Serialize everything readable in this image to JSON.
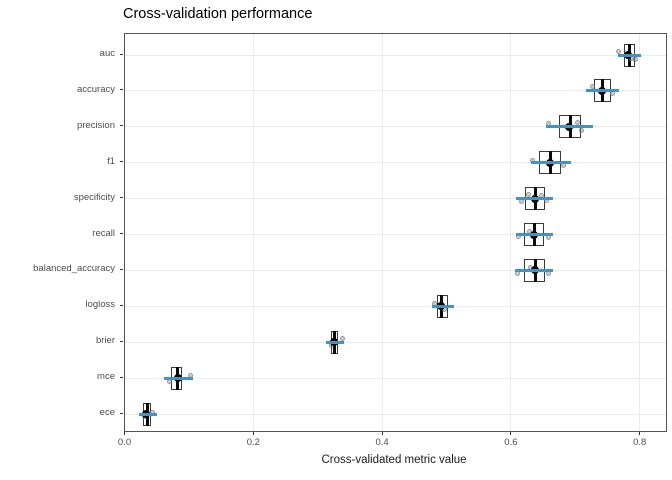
{
  "chart_data": {
    "type": "boxplot",
    "orientation": "horizontal",
    "title": "Cross-validation performance",
    "xlabel": "Cross-validated metric value",
    "x_ticks": [
      "0.0",
      "0.2",
      "0.4",
      "0.6",
      "0.8"
    ],
    "x_tick_values": [
      0,
      0.2,
      0.4,
      0.6,
      0.8
    ],
    "xlim": [
      0,
      0.843
    ],
    "grid": "major-only",
    "legend": "none",
    "colors": {
      "mean_errorbar": "#4292c6",
      "box_border": "#3a3a3a",
      "median": "#0a0a0a",
      "mean_dot": "#000000",
      "jitter_points": "#8c8c8c",
      "gridline": "#ebebeb",
      "panel_border": "#555555",
      "tick_text": "#4d4d4d"
    },
    "metrics": [
      {
        "name": "auc",
        "box": [
          0.776,
          0.792
        ],
        "median": 0.784,
        "mean": 0.782,
        "line": [
          0.766,
          0.802
        ],
        "points": [
          {
            "v": 0.767,
            "dy": -4
          },
          {
            "v": 0.787,
            "dy": 3
          },
          {
            "v": 0.794,
            "dy": 4
          }
        ]
      },
      {
        "name": "accuracy",
        "box": [
          0.729,
          0.755
        ],
        "median": 0.743,
        "mean": 0.741,
        "line": [
          0.717,
          0.768
        ],
        "points": [
          {
            "v": 0.726,
            "dy": -4
          },
          {
            "v": 0.757,
            "dy": 3
          }
        ]
      },
      {
        "name": "precision",
        "box": [
          0.675,
          0.709
        ],
        "median": 0.693,
        "mean": 0.69,
        "line": [
          0.654,
          0.727
        ],
        "points": [
          {
            "v": 0.659,
            "dy": -3
          },
          {
            "v": 0.703,
            "dy": -4
          },
          {
            "v": 0.709,
            "dy": 4
          }
        ]
      },
      {
        "name": "f1",
        "box": [
          0.644,
          0.678
        ],
        "median": 0.662,
        "mean": 0.661,
        "line": [
          0.631,
          0.693
        ],
        "points": [
          {
            "v": 0.634,
            "dy": -2
          },
          {
            "v": 0.681,
            "dy": 3
          }
        ]
      },
      {
        "name": "specificity",
        "box": [
          0.622,
          0.653
        ],
        "median": 0.638,
        "mean": 0.638,
        "line": [
          0.608,
          0.665
        ],
        "points": [
          {
            "v": 0.617,
            "dy": 3
          },
          {
            "v": 0.627,
            "dy": -4
          },
          {
            "v": 0.647,
            "dy": -3
          },
          {
            "v": 0.655,
            "dy": 2
          }
        ]
      },
      {
        "name": "recall",
        "box": [
          0.621,
          0.652
        ],
        "median": 0.636,
        "mean": 0.636,
        "line": [
          0.608,
          0.665
        ],
        "points": [
          {
            "v": 0.612,
            "dy": 2
          },
          {
            "v": 0.629,
            "dy": -3
          },
          {
            "v": 0.659,
            "dy": 3
          }
        ]
      },
      {
        "name": "balanced_accuracy",
        "box": [
          0.621,
          0.653
        ],
        "median": 0.638,
        "mean": 0.637,
        "line": [
          0.606,
          0.666
        ],
        "points": [
          {
            "v": 0.61,
            "dy": 3
          },
          {
            "v": 0.63,
            "dy": -3
          },
          {
            "v": 0.659,
            "dy": 3
          }
        ]
      },
      {
        "name": "logloss",
        "box": [
          0.486,
          0.502
        ],
        "median": 0.493,
        "mean": 0.492,
        "line": [
          0.477,
          0.511
        ],
        "points": [
          {
            "v": 0.481,
            "dy": -3
          },
          {
            "v": 0.497,
            "dy": 3
          }
        ]
      },
      {
        "name": "brier",
        "box": [
          0.321,
          0.331
        ],
        "median": 0.326,
        "mean": 0.325,
        "line": [
          0.313,
          0.341
        ],
        "points": [
          {
            "v": 0.322,
            "dy": 3
          },
          {
            "v": 0.339,
            "dy": -4
          }
        ]
      },
      {
        "name": "mce",
        "box": [
          0.072,
          0.09
        ],
        "median": 0.082,
        "mean": 0.083,
        "line": [
          0.062,
          0.106
        ],
        "points": [
          {
            "v": 0.07,
            "dy": 3
          },
          {
            "v": 0.102,
            "dy": -3
          }
        ]
      },
      {
        "name": "ece",
        "box": [
          0.029,
          0.041
        ],
        "median": 0.035,
        "mean": 0.034,
        "line": [
          0.023,
          0.051
        ],
        "points": [
          {
            "v": 0.031,
            "dy": 2
          },
          {
            "v": 0.044,
            "dy": -2
          }
        ]
      }
    ]
  }
}
